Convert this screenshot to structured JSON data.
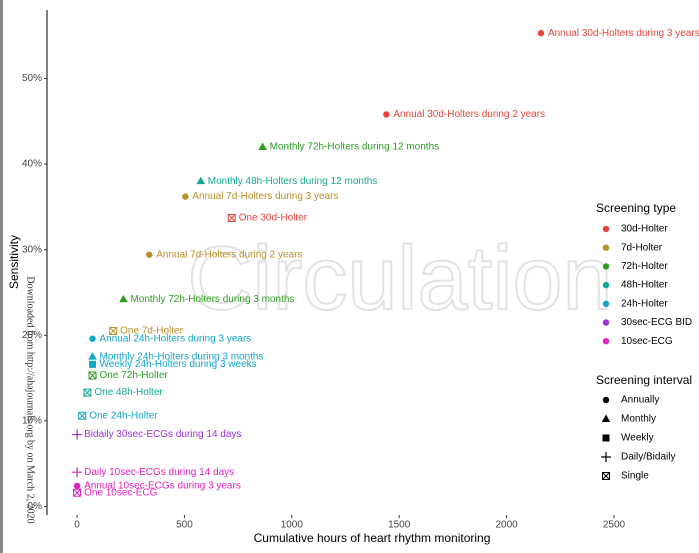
{
  "chart_data": {
    "type": "scatter",
    "x_label": "Cumulative hours of heart rhythm monitoring",
    "y_label": "Sensitivity",
    "xlim": [
      -140,
      2896
    ],
    "ylim": [
      -1,
      58
    ],
    "xticks": [
      0,
      500,
      1000,
      1500,
      2000,
      2500
    ],
    "yticks": [
      {
        "value": 0,
        "label": "0%"
      },
      {
        "value": 10,
        "label": "10%"
      },
      {
        "value": 20,
        "label": "20%"
      },
      {
        "value": 30,
        "label": "30%"
      },
      {
        "value": 40,
        "label": "40%"
      },
      {
        "value": 50,
        "label": "50%"
      }
    ],
    "legend_title": "Screening type",
    "interval_title": "Screening interval",
    "intervals": [
      "Annually",
      "Monthly",
      "Weekly",
      "Daily/Bidaily",
      "Single"
    ],
    "watermark": "Circulation",
    "side_note": "Downloaded from http://ahajournals.org by on March 2, 2020",
    "series": [
      {
        "name": "30d-Holter",
        "color": "#e8453c",
        "x": [
          2160,
          1440,
          720
        ],
        "values": [
          55.3,
          45.8,
          33.7
        ],
        "labels": [
          "Annual 30d-Holters during 3 years",
          "Annual 30d-Holters during 2 years",
          "One 30d-Holter"
        ],
        "interval": [
          "Annually",
          "Annually",
          "Single"
        ]
      },
      {
        "name": "7d-Holter",
        "color": "#b8902a",
        "x": [
          504,
          336,
          168
        ],
        "values": [
          36.2,
          29.4,
          20.5
        ],
        "labels": [
          "Annual 7d-Holters during 3 years",
          "Annual 7d-Holters during 2 years",
          "One 7d-Holter"
        ],
        "interval": [
          "Annually",
          "Annually",
          "Single"
        ]
      },
      {
        "name": "72h-Holter",
        "color": "#2e9e23",
        "x": [
          864,
          216,
          72
        ],
        "values": [
          42.0,
          24.2,
          15.3
        ],
        "labels": [
          "Monthly 72h-Holters during 12 months",
          "Monthly 72h-Holters during 3 months",
          "One 72h-Holter"
        ],
        "interval": [
          "Monthly",
          "Monthly",
          "Single"
        ]
      },
      {
        "name": "48h-Holter",
        "color": "#14a894",
        "x": [
          576,
          48
        ],
        "values": [
          38.0,
          13.3
        ],
        "labels": [
          "Monthly 48h-Holters during 12 months",
          "One 48h-Holter"
        ],
        "interval": [
          "Monthly",
          "Single"
        ]
      },
      {
        "name": "24h-Holter",
        "color": "#12a6c9",
        "x": [
          72,
          72,
          72,
          24
        ],
        "values": [
          19.6,
          17.5,
          16.6,
          10.6
        ],
        "labels": [
          "Annual 24h-Holters during 3 years",
          "Monthly 24h-Holters during 3 months",
          "Weekly 24h-Holters during 3 weeks",
          "One 24h-Holter"
        ],
        "interval": [
          "Annually",
          "Monthly",
          "Weekly",
          "Single"
        ]
      },
      {
        "name": "30sec-ECG BID",
        "color": "#9b30d9",
        "x": [
          0.3
        ],
        "values": [
          8.4
        ],
        "labels": [
          "Bidaily 30sec-ECGs during 14 days"
        ],
        "interval": [
          "Daily/Bidaily"
        ]
      },
      {
        "name": "10sec-ECG",
        "color": "#e021c0",
        "x": [
          0.2,
          0.1,
          0
        ],
        "values": [
          4.0,
          2.4,
          1.6
        ],
        "labels": [
          "Daily 10sec-ECGs during 14 days",
          "Annual 10sec-ECGs during 3 years",
          "One 10sec-ECG"
        ],
        "interval": [
          "Daily/Bidaily",
          "Annually",
          "Single"
        ]
      }
    ]
  }
}
